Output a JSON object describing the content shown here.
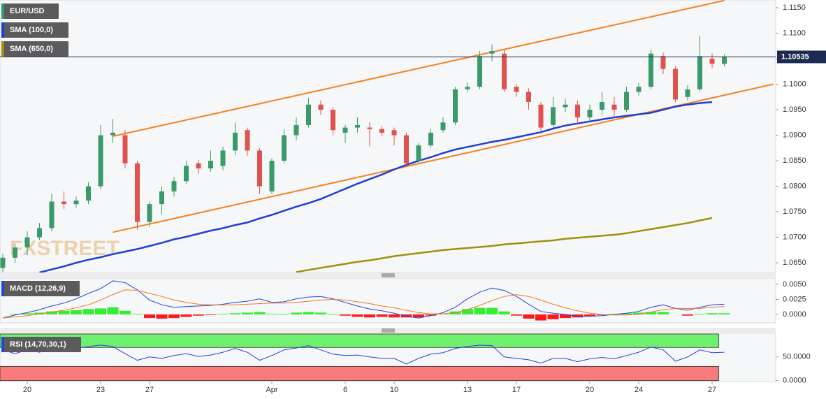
{
  "watermark": "FXSTREET",
  "chart_data": [
    {
      "type": "candlestick",
      "title": "EUR/USD",
      "title_color": "#2e9b6c",
      "up_color": "#3a9a6a",
      "down_color": "#e0524d",
      "categories": [
        null,
        null,
        "20",
        null,
        null,
        null,
        null,
        null,
        "23",
        null,
        null,
        null,
        "27",
        null,
        null,
        null,
        null,
        null,
        null,
        null,
        null,
        null,
        "Apr",
        null,
        null,
        null,
        null,
        null,
        "6",
        null,
        null,
        null,
        "10",
        null,
        null,
        null,
        null,
        null,
        "13",
        null,
        null,
        null,
        "17",
        null,
        null,
        null,
        null,
        null,
        "20",
        null,
        null,
        null,
        "24",
        null,
        null,
        null,
        null,
        null,
        "27",
        null
      ],
      "open": [
        1.064,
        1.066,
        1.068,
        1.07,
        1.0718,
        1.077,
        1.0765,
        1.0772,
        1.08,
        1.09,
        1.09,
        1.0845,
        1.073,
        1.0765,
        1.079,
        1.081,
        1.0845,
        1.0835,
        1.084,
        1.087,
        1.091,
        1.087,
        1.079,
        1.085,
        1.09,
        1.092,
        1.096,
        1.095,
        1.0905,
        1.0915,
        1.0915,
        1.0912,
        1.091,
        1.09,
        1.085,
        1.088,
        1.091,
        1.0925,
        1.099,
        1.0995,
        1.106,
        1.106,
        1.0995,
        1.0985,
        1.096,
        1.092,
        1.0955,
        1.096,
        1.0935,
        1.095,
        1.096,
        1.095,
        1.0985,
        1.0995,
        1.1055,
        1.103,
        1.0975,
        1.099,
        1.105,
        1.104
      ],
      "high": [
        1.0668,
        1.0688,
        1.0712,
        1.0728,
        1.0785,
        1.079,
        1.078,
        1.0808,
        1.092,
        1.0932,
        1.091,
        1.085,
        1.077,
        1.08,
        1.0818,
        1.085,
        1.0852,
        1.087,
        1.0878,
        1.0925,
        1.0915,
        1.0875,
        1.0855,
        1.0912,
        1.0935,
        1.0973,
        1.0968,
        1.0955,
        1.092,
        1.0935,
        1.0925,
        1.0918,
        1.0915,
        1.0905,
        1.0885,
        1.0912,
        1.0935,
        1.0995,
        1.1003,
        1.1065,
        1.1078,
        1.1068,
        1.1,
        1.0992,
        1.0965,
        1.0975,
        1.0972,
        1.0968,
        1.096,
        1.0985,
        1.0975,
        1.0995,
        1.1002,
        1.1068,
        1.1062,
        1.1035,
        1.0998,
        1.1095,
        1.106,
        1.1058
      ],
      "low": [
        1.0632,
        1.065,
        1.0665,
        1.0695,
        1.0712,
        1.0755,
        1.0758,
        1.0765,
        1.0795,
        1.0885,
        1.0835,
        1.0715,
        1.072,
        1.0745,
        1.078,
        1.0805,
        1.0825,
        1.0828,
        1.0832,
        1.0862,
        1.086,
        1.0785,
        1.0785,
        1.0845,
        1.089,
        1.0915,
        1.094,
        1.09,
        1.0885,
        1.0905,
        1.0878,
        1.0898,
        1.088,
        1.0838,
        1.0845,
        1.0875,
        1.0905,
        1.092,
        1.0985,
        1.099,
        1.1045,
        1.0985,
        1.0975,
        1.095,
        1.0905,
        1.0915,
        1.0945,
        1.092,
        1.0928,
        1.094,
        1.0935,
        1.0945,
        1.0978,
        1.099,
        1.102,
        1.0965,
        1.0968,
        1.0985,
        1.1032,
        1.1035
      ],
      "close": [
        1.066,
        1.068,
        1.07,
        1.0718,
        1.077,
        1.0765,
        1.0772,
        1.08,
        1.09,
        1.0905,
        1.0845,
        1.073,
        1.0765,
        1.079,
        1.081,
        1.084,
        1.0835,
        1.085,
        1.087,
        1.0905,
        1.087,
        1.08,
        1.085,
        1.09,
        1.092,
        1.096,
        1.095,
        1.091,
        1.0915,
        1.092,
        1.0912,
        1.0905,
        1.09,
        1.0845,
        1.088,
        1.0905,
        1.0925,
        1.099,
        1.0995,
        1.1055,
        1.1065,
        1.099,
        1.0985,
        1.0965,
        1.0915,
        1.0955,
        1.096,
        1.0935,
        1.095,
        1.0965,
        1.095,
        1.0985,
        1.0995,
        1.106,
        1.103,
        1.097,
        1.099,
        1.1055,
        1.104,
        1.10535
      ],
      "series": [
        {
          "name": "SMA (100,0)",
          "color": "#1f3fd0",
          "values": [
            null,
            null,
            null,
            1.0631,
            1.0637,
            1.0643,
            1.065,
            1.0656,
            1.0661,
            1.0667,
            1.0672,
            1.0677,
            1.0683,
            1.0689,
            1.0696,
            1.0701,
            1.0707,
            1.0713,
            1.0718,
            1.0724,
            1.0729,
            1.0737,
            1.0744,
            1.0752,
            1.076,
            1.0767,
            1.0775,
            1.0785,
            1.0795,
            1.0805,
            1.0814,
            1.0823,
            1.0833,
            1.0842,
            1.085,
            1.0857,
            1.0865,
            1.0872,
            1.0877,
            1.0882,
            1.0887,
            1.0891,
            1.0896,
            1.0901,
            1.0906,
            1.0913,
            1.0919,
            1.0923,
            1.0927,
            1.0931,
            1.0935,
            1.0938,
            1.0941,
            1.0944,
            1.095,
            1.0956,
            1.096,
            1.0963,
            1.0965,
            null
          ]
        },
        {
          "name": "SMA (650,0)",
          "color": "#a0900f",
          "values": [
            null,
            null,
            null,
            null,
            null,
            null,
            null,
            null,
            null,
            null,
            null,
            null,
            null,
            null,
            null,
            null,
            null,
            null,
            null,
            null,
            null,
            null,
            null,
            null,
            1.0632,
            1.0636,
            1.064,
            1.0644,
            1.0648,
            1.0652,
            1.0655,
            1.0659,
            1.0663,
            1.0666,
            1.0669,
            1.0672,
            1.0675,
            1.0677,
            1.0679,
            1.0681,
            1.0683,
            1.0686,
            1.0688,
            1.069,
            1.0692,
            1.0694,
            1.0697,
            1.0699,
            1.0701,
            1.0703,
            1.0705,
            1.0708,
            1.0712,
            1.0716,
            1.072,
            1.0724,
            1.0728,
            1.0733,
            1.0738,
            null
          ]
        }
      ],
      "trendlines": [
        {
          "color": "#f5821f",
          "x": [
            9,
            59
          ],
          "values": [
            1.0898,
            1.1164
          ]
        },
        {
          "color": "#f5821f",
          "x": [
            9,
            63
          ],
          "values": [
            1.071,
            1.1
          ]
        }
      ],
      "last_price": 1.10535,
      "last_price_color": "#1d2b52",
      "ylim": [
        1.0631,
        1.1165
      ],
      "yticks": [
        {
          "value": 1.115,
          "label": "1.1150"
        },
        {
          "value": 1.11,
          "label": "1.1100"
        },
        {
          "value": 1.105,
          "label": "1.1050"
        },
        {
          "value": 1.1,
          "label": "1.1000"
        },
        {
          "value": 1.095,
          "label": "1.0950"
        },
        {
          "value": 1.09,
          "label": "1.0900"
        },
        {
          "value": 1.085,
          "label": "1.0850"
        },
        {
          "value": 1.08,
          "label": "1.0800"
        },
        {
          "value": 1.075,
          "label": "1.0750"
        },
        {
          "value": 1.07,
          "label": "1.0700"
        },
        {
          "value": 1.065,
          "label": "1.0650"
        }
      ]
    },
    {
      "type": "macd",
      "title": "MACD (12,26,9)",
      "macd": {
        "color": "#2244dd",
        "values": [
          -0.0006,
          -0.0001,
          0.0003,
          0.0008,
          0.0014,
          0.0019,
          0.0026,
          0.0035,
          0.0043,
          0.0056,
          0.0053,
          0.0041,
          0.0024,
          0.0016,
          0.0012,
          0.0013,
          0.0014,
          0.0015,
          0.0017,
          0.002,
          0.0022,
          0.0026,
          0.002,
          0.0021,
          0.0026,
          0.0029,
          0.003,
          0.0026,
          0.002,
          0.0014,
          0.0009,
          0.0006,
          0.0002,
          -0.0003,
          -0.0006,
          -0.0002,
          0.0003,
          0.0012,
          0.0026,
          0.0037,
          0.0044,
          0.004,
          0.003,
          0.0017,
          0.0005,
          0.0002,
          0.0,
          -0.0003,
          -0.0003,
          -0.0002,
          0.0,
          0.0002,
          0.0005,
          0.0012,
          0.0016,
          0.001,
          0.0007,
          0.0012,
          0.0016,
          0.0017
        ]
      },
      "signal": {
        "color": "#f07a1a",
        "values": [
          -0.0006,
          -0.0004,
          -0.0002,
          0.0001,
          0.0004,
          0.0007,
          0.0011,
          0.0016,
          0.0024,
          0.0033,
          0.0041,
          0.004,
          0.0035,
          0.003,
          0.0024,
          0.002,
          0.0017,
          0.0016,
          0.0016,
          0.0016,
          0.0017,
          0.0018,
          0.0019,
          0.0019,
          0.002,
          0.0022,
          0.0024,
          0.0025,
          0.0024,
          0.0021,
          0.0018,
          0.0014,
          0.0011,
          0.0007,
          0.0003,
          0.0001,
          0.0001,
          0.0003,
          0.0008,
          0.0015,
          0.0023,
          0.003,
          0.0033,
          0.003,
          0.0024,
          0.0017,
          0.0011,
          0.0006,
          0.0002,
          0.0,
          -0.0001,
          -0.0001,
          0.0,
          0.0004,
          0.0008,
          0.001,
          0.001,
          0.001,
          0.0012,
          0.0013
        ]
      },
      "histogram": {
        "up_color": "#33ee33",
        "down_color": "#ff1a1a",
        "values": [
          0.0,
          0.0001,
          0.0002,
          0.0003,
          0.0005,
          0.0006,
          0.0007,
          0.0009,
          0.001,
          0.0012,
          0.0006,
          0.0001,
          -0.0006,
          -0.0007,
          -0.0006,
          -0.0004,
          -0.0002,
          -0.0001,
          0.0001,
          0.0002,
          0.0003,
          0.0004,
          0.0001,
          0.0001,
          0.0003,
          0.0004,
          0.0003,
          0.0001,
          -0.0002,
          -0.0004,
          -0.0005,
          -0.0004,
          -0.0005,
          -0.0005,
          -0.0005,
          -0.0002,
          0.0001,
          0.0005,
          0.0009,
          0.0011,
          0.0011,
          0.0005,
          -0.0002,
          -0.0007,
          -0.001,
          -0.0008,
          -0.0006,
          -0.0005,
          -0.0003,
          -0.0001,
          0.0001,
          0.0002,
          0.0003,
          0.0004,
          0.0004,
          0.0,
          -0.0002,
          0.0001,
          0.0002,
          0.0002
        ]
      },
      "ylim": [
        -0.0014,
        0.00605
      ],
      "yticks": [
        {
          "value": 0.005,
          "label": "0.0050"
        },
        {
          "value": 0.0025,
          "label": "0.0025"
        },
        {
          "value": 0,
          "label": "0.0000"
        }
      ]
    },
    {
      "type": "rsi",
      "title": "RSI (14,70,30,1)",
      "color": "#2244dd",
      "overbought": 70,
      "oversold": 30,
      "overbought_color": "#6ef06e",
      "oversold_color": "#f77b7b",
      "values": [
        65,
        57,
        65,
        60,
        69,
        65,
        68,
        72,
        75,
        72,
        57,
        43,
        50,
        47,
        53,
        57,
        51,
        54,
        60,
        68,
        60,
        43,
        53,
        65,
        69,
        74,
        65,
        56,
        53,
        54,
        50,
        47,
        47,
        35,
        47,
        56,
        59,
        68,
        72,
        75,
        74,
        50,
        47,
        44,
        37,
        47,
        47,
        40,
        46,
        49,
        46,
        53,
        60,
        71,
        65,
        41,
        50,
        65,
        59,
        60
      ],
      "ylim": [
        -2,
        100
      ],
      "yticks": [
        {
          "value": 50,
          "label": "50.0000"
        },
        {
          "value": 0,
          "label": "0.0000"
        }
      ]
    }
  ]
}
